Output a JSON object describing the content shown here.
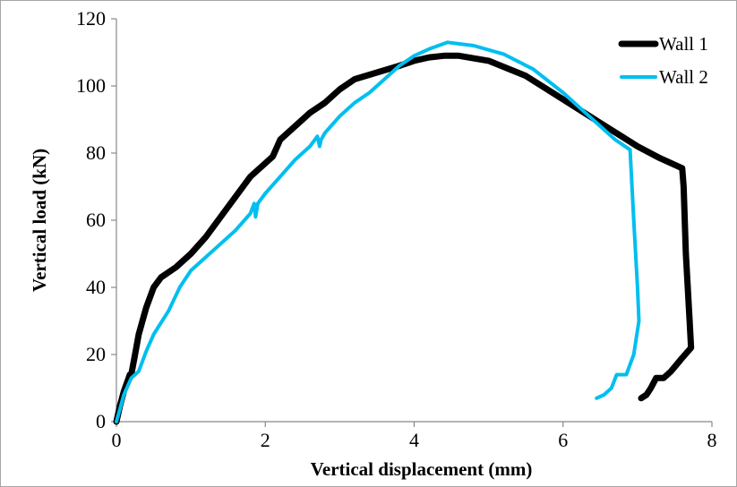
{
  "chart_data": {
    "type": "line",
    "title": "",
    "xlabel": "Vertical displacement (mm)",
    "ylabel": "Vertical load (kN)",
    "xlim": [
      0,
      8
    ],
    "ylim": [
      0,
      120
    ],
    "x_ticks": [
      0,
      2,
      4,
      6,
      8
    ],
    "y_ticks": [
      0,
      20,
      40,
      60,
      80,
      100,
      120
    ],
    "grid": false,
    "legend_position": "top-right",
    "series": [
      {
        "name": "Wall 1",
        "color": "#000000",
        "points": [
          [
            0,
            0
          ],
          [
            0.05,
            5
          ],
          [
            0.1,
            9
          ],
          [
            0.18,
            14
          ],
          [
            0.2,
            14
          ],
          [
            0.25,
            20
          ],
          [
            0.3,
            26
          ],
          [
            0.4,
            34
          ],
          [
            0.5,
            40
          ],
          [
            0.6,
            43
          ],
          [
            0.8,
            46
          ],
          [
            1.0,
            50
          ],
          [
            1.2,
            55
          ],
          [
            1.4,
            61
          ],
          [
            1.6,
            67
          ],
          [
            1.8,
            73
          ],
          [
            2.0,
            77
          ],
          [
            2.1,
            79
          ],
          [
            2.2,
            84
          ],
          [
            2.4,
            88
          ],
          [
            2.6,
            92
          ],
          [
            2.8,
            95
          ],
          [
            3.0,
            99
          ],
          [
            3.2,
            102
          ],
          [
            3.5,
            104
          ],
          [
            3.8,
            106
          ],
          [
            4.0,
            107.5
          ],
          [
            4.2,
            108.5
          ],
          [
            4.4,
            109
          ],
          [
            4.6,
            109
          ],
          [
            5.0,
            107.5
          ],
          [
            5.5,
            103
          ],
          [
            6.0,
            96
          ],
          [
            6.5,
            89
          ],
          [
            7.0,
            82
          ],
          [
            7.3,
            78.5
          ],
          [
            7.6,
            75.5
          ],
          [
            7.62,
            70
          ],
          [
            7.65,
            50
          ],
          [
            7.7,
            30
          ],
          [
            7.72,
            22
          ],
          [
            7.6,
            19
          ],
          [
            7.45,
            15
          ],
          [
            7.35,
            13
          ],
          [
            7.25,
            13
          ],
          [
            7.18,
            10
          ],
          [
            7.12,
            8
          ],
          [
            7.05,
            7
          ]
        ]
      },
      {
        "name": "Wall 2",
        "color": "#00bfef",
        "points": [
          [
            0,
            0
          ],
          [
            0.05,
            4
          ],
          [
            0.1,
            8
          ],
          [
            0.2,
            13
          ],
          [
            0.3,
            15
          ],
          [
            0.4,
            21
          ],
          [
            0.5,
            26
          ],
          [
            0.7,
            33
          ],
          [
            0.85,
            40
          ],
          [
            1.0,
            45
          ],
          [
            1.2,
            49
          ],
          [
            1.4,
            53
          ],
          [
            1.6,
            57
          ],
          [
            1.8,
            62
          ],
          [
            1.85,
            65
          ],
          [
            1.87,
            61
          ],
          [
            1.9,
            65
          ],
          [
            2.0,
            68
          ],
          [
            2.2,
            73
          ],
          [
            2.4,
            78
          ],
          [
            2.6,
            82
          ],
          [
            2.7,
            85
          ],
          [
            2.73,
            82
          ],
          [
            2.75,
            84
          ],
          [
            2.8,
            86
          ],
          [
            3.0,
            91
          ],
          [
            3.2,
            95
          ],
          [
            3.4,
            98
          ],
          [
            3.6,
            102
          ],
          [
            3.8,
            106
          ],
          [
            4.0,
            109
          ],
          [
            4.2,
            111
          ],
          [
            4.45,
            113
          ],
          [
            4.8,
            112
          ],
          [
            5.2,
            109.5
          ],
          [
            5.6,
            105
          ],
          [
            6.0,
            98
          ],
          [
            6.4,
            90
          ],
          [
            6.7,
            84
          ],
          [
            6.9,
            81
          ],
          [
            6.95,
            60
          ],
          [
            7.0,
            40
          ],
          [
            7.02,
            30
          ],
          [
            6.95,
            20
          ],
          [
            6.85,
            14
          ],
          [
            6.72,
            14
          ],
          [
            6.65,
            10
          ],
          [
            6.55,
            8
          ],
          [
            6.45,
            7
          ]
        ]
      }
    ]
  }
}
